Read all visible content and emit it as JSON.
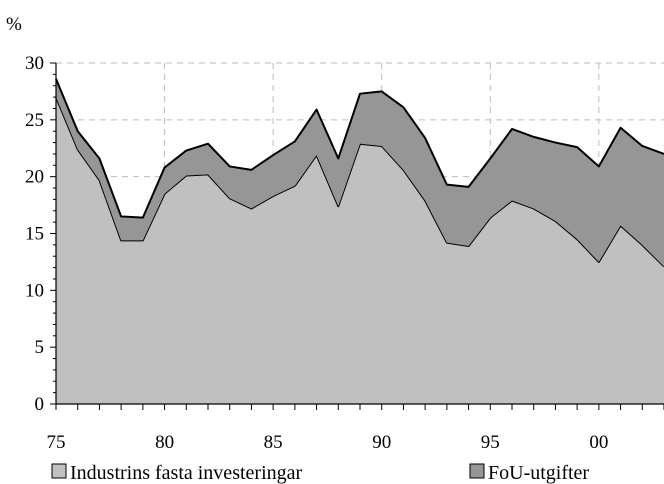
{
  "chart_data": {
    "type": "area",
    "stacked": true,
    "ylabel": "%",
    "ylim": [
      0,
      30
    ],
    "yticks": [
      0,
      5,
      10,
      15,
      20,
      25,
      30
    ],
    "xlim": [
      1975,
      2003
    ],
    "xticks": [
      {
        "value": 1975,
        "label": "75"
      },
      {
        "value": 1980,
        "label": "80"
      },
      {
        "value": 1985,
        "label": "85"
      },
      {
        "value": 1990,
        "label": "90"
      },
      {
        "value": 1995,
        "label": "95"
      },
      {
        "value": 2000,
        "label": "00"
      }
    ],
    "grid": true,
    "legend_position": "bottom",
    "x": [
      1975,
      1976,
      1977,
      1978,
      1979,
      1980,
      1981,
      1982,
      1983,
      1984,
      1985,
      1986,
      1987,
      1988,
      1989,
      1990,
      1991,
      1992,
      1993,
      1994,
      1995,
      1996,
      1997,
      1998,
      1999,
      2000,
      2001,
      2002,
      2003
    ],
    "series": [
      {
        "name": "Industrins fasta investeringar",
        "color": "#c0c0c0",
        "values": [
          27.0,
          22.4,
          19.7,
          14.4,
          14.4,
          18.5,
          20.1,
          20.2,
          18.1,
          17.2,
          18.3,
          19.2,
          21.9,
          17.4,
          22.9,
          22.7,
          20.6,
          17.9,
          14.2,
          13.9,
          16.4,
          17.9,
          17.2,
          16.1,
          14.5,
          12.5,
          15.7,
          14.0,
          12.1
        ]
      },
      {
        "name": "FoU-utgifter",
        "color": "#969696",
        "values": [
          1.6,
          1.6,
          1.9,
          2.1,
          2.0,
          2.3,
          2.2,
          2.7,
          2.8,
          3.4,
          3.6,
          3.9,
          4.0,
          4.2,
          4.4,
          4.8,
          5.5,
          5.5,
          5.1,
          5.2,
          5.2,
          6.3,
          6.3,
          6.9,
          8.1,
          8.4,
          8.6,
          8.7,
          9.9
        ]
      }
    ]
  }
}
